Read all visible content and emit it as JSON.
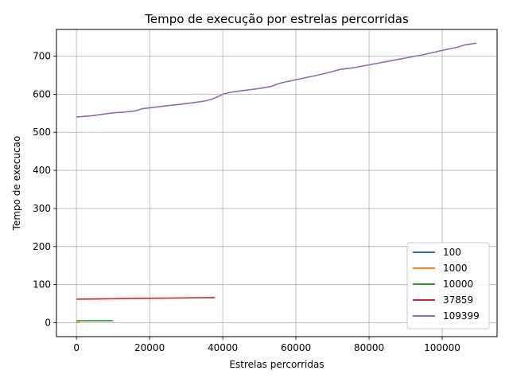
{
  "chart_data": {
    "type": "line",
    "title": "Tempo de execução por estrelas percorridas",
    "xlabel": "Estrelas percorridas",
    "ylabel": "Tempo de execucao",
    "xlim": [
      -5470,
      115000
    ],
    "ylim": [
      -36.5,
      770
    ],
    "xticks": [
      0,
      20000,
      40000,
      60000,
      80000,
      100000
    ],
    "xtick_labels": [
      "0",
      "20000",
      "40000",
      "60000",
      "80000",
      "100000"
    ],
    "yticks": [
      0,
      100,
      200,
      300,
      400,
      500,
      600,
      700
    ],
    "ytick_labels": [
      "0",
      "100",
      "200",
      "300",
      "400",
      "500",
      "600",
      "700"
    ],
    "grid": true,
    "legend_position": "lower-right",
    "series": [
      {
        "name": "100",
        "color": "#1f77b4",
        "x": [
          0,
          100
        ],
        "y": [
          0.05,
          0.06
        ]
      },
      {
        "name": "1000",
        "color": "#ff7f0e",
        "x": [
          0,
          1000
        ],
        "y": [
          0.5,
          0.6
        ]
      },
      {
        "name": "10000",
        "color": "#2ca02c",
        "x": [
          0,
          10000
        ],
        "y": [
          5.0,
          5.5
        ]
      },
      {
        "name": "37859",
        "color": "#d62728",
        "x": [
          0,
          37859
        ],
        "y": [
          62,
          66
        ]
      },
      {
        "name": "109399",
        "color": "#9467bd",
        "x": [
          0,
          4000,
          7000,
          10000,
          13000,
          16000,
          18000,
          20000,
          24000,
          28000,
          32000,
          35000,
          37000,
          39000,
          40000,
          42000,
          46000,
          50000,
          53000,
          54000,
          55000,
          57000,
          60000,
          65000,
          69000,
          72000,
          76000,
          80000,
          85000,
          90000,
          95000,
          100000,
          104000,
          106000,
          109399
        ],
        "y": [
          540,
          543,
          547,
          551,
          553,
          556,
          562,
          564,
          569,
          573,
          578,
          582,
          587,
          595,
          600,
          605,
          610,
          615,
          620,
          623,
          627,
          632,
          638,
          648,
          657,
          665,
          670,
          677,
          686,
          695,
          704,
          715,
          723,
          729,
          734
        ]
      }
    ]
  }
}
